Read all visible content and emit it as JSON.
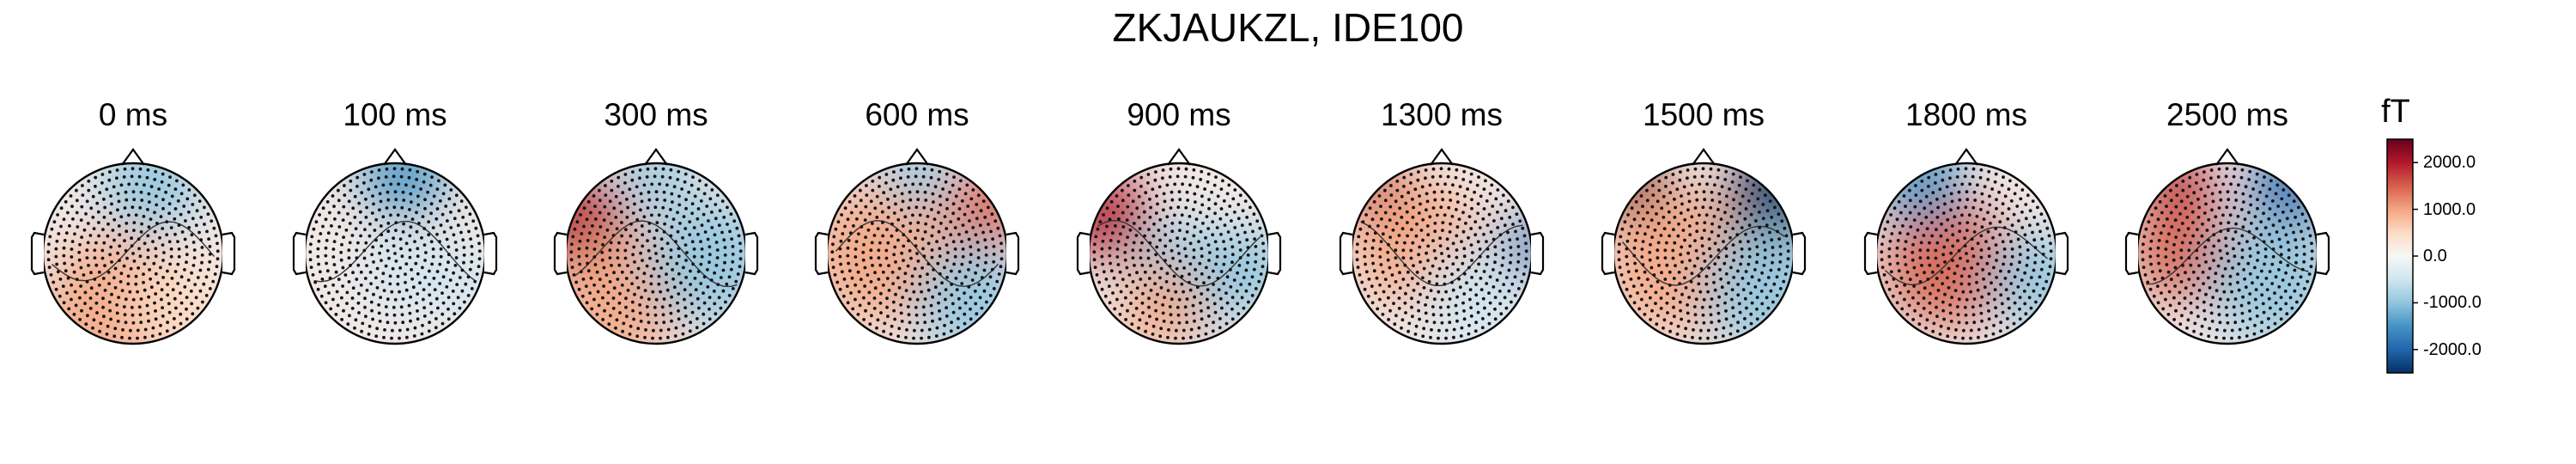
{
  "figure": {
    "title": "ZKJAUKZL, IDE100"
  },
  "chart_data": {
    "type": "heatmap",
    "title": "ZKJAUKZL, IDE100",
    "panels": [
      {
        "label": "0 ms"
      },
      {
        "label": "100 ms"
      },
      {
        "label": "300 ms"
      },
      {
        "label": "600 ms"
      },
      {
        "label": "900 ms"
      },
      {
        "label": "1300 ms"
      },
      {
        "label": "1500 ms"
      },
      {
        "label": "1800 ms"
      },
      {
        "label": "2500 ms"
      }
    ],
    "colorbar": {
      "unit": "fT",
      "range": [
        -2500,
        2500
      ],
      "colormap": [
        "#053061",
        "#2166ac",
        "#4393c3",
        "#92c5de",
        "#d1e5f0",
        "#f7f7f7",
        "#fddbc7",
        "#f4a582",
        "#d6604d",
        "#b2182b",
        "#67001f"
      ],
      "ticks": [
        2000,
        1000,
        0,
        -1000,
        -2000
      ],
      "tick_labels": [
        "2000.0",
        "1000.0",
        "0.0",
        "-1000.0",
        "-2000.0"
      ]
    }
  }
}
